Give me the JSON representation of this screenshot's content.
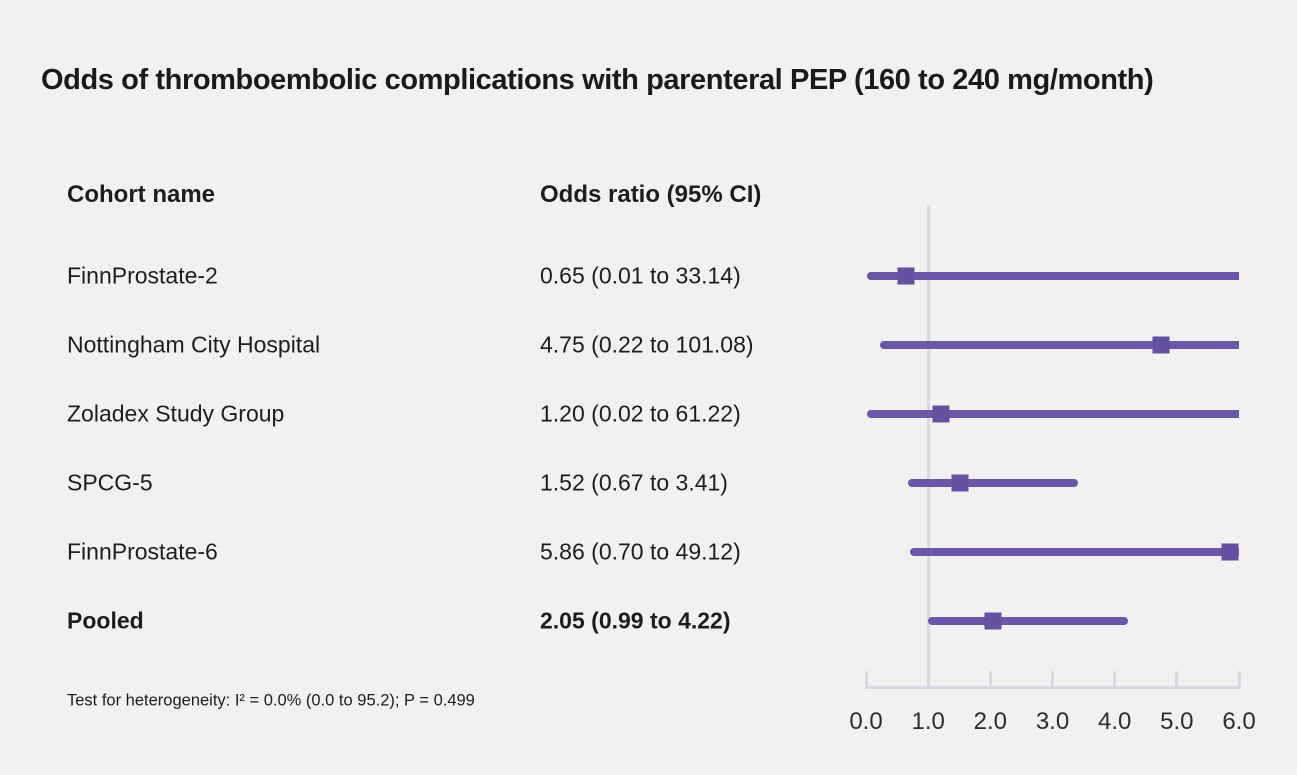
{
  "title": "Odds of thromboembolic complications with parenteral PEP (160 to 240 mg/month)",
  "columns": {
    "cohort": "Cohort name",
    "odds": "Odds ratio (95% CI)"
  },
  "footnote": "Test for heterogeneity: I² = 0.0% (0.0 to 95.2); P = 0.499",
  "colors": {
    "background": "#f2f1f1",
    "text": "#1d1d1b",
    "ci_line": "#6a58a7",
    "marker": "#64519f",
    "axis": "#d6dae2"
  },
  "chart_data": {
    "type": "scatter",
    "subtype": "forest-plot",
    "title": "Odds of thromboembolic complications with parenteral PEP (160 to 240 mg/month)",
    "xlabel": "",
    "ylabel": "",
    "x_axis": {
      "min": 0,
      "max": 6,
      "ticks": [
        0,
        1,
        2,
        3,
        4,
        5,
        6
      ],
      "tick_labels": [
        "0.0",
        "1.0",
        "2.0",
        "3.0",
        "4.0",
        "5.0",
        "6.0"
      ],
      "reference_line": 1.0,
      "note": "upper confidence limits beyond 6.0 are clipped at the axis edge"
    },
    "grid": false,
    "legend": false,
    "rows": [
      {
        "cohort": "FinnProstate-2",
        "or": 0.65,
        "ci_low": 0.01,
        "ci_high": 33.14,
        "display": "0.65 (0.01 to 33.14)",
        "bold": false
      },
      {
        "cohort": "Nottingham City Hospital",
        "or": 4.75,
        "ci_low": 0.22,
        "ci_high": 101.08,
        "display": "4.75 (0.22 to 101.08)",
        "bold": false
      },
      {
        "cohort": "Zoladex Study Group",
        "or": 1.2,
        "ci_low": 0.02,
        "ci_high": 61.22,
        "display": "1.20 (0.02 to 61.22)",
        "bold": false
      },
      {
        "cohort": "SPCG-5",
        "or": 1.52,
        "ci_low": 0.67,
        "ci_high": 3.41,
        "display": "1.52 (0.67 to 3.41)",
        "bold": false
      },
      {
        "cohort": "FinnProstate-6",
        "or": 5.86,
        "ci_low": 0.7,
        "ci_high": 49.12,
        "display": "5.86 (0.70 to 49.12)",
        "bold": false
      },
      {
        "cohort": "Pooled",
        "or": 2.05,
        "ci_low": 0.99,
        "ci_high": 4.22,
        "display": "2.05 (0.99 to 4.22)",
        "bold": true
      }
    ],
    "heterogeneity": "Test for heterogeneity: I² = 0.0% (0.0 to 95.2); P = 0.499"
  }
}
